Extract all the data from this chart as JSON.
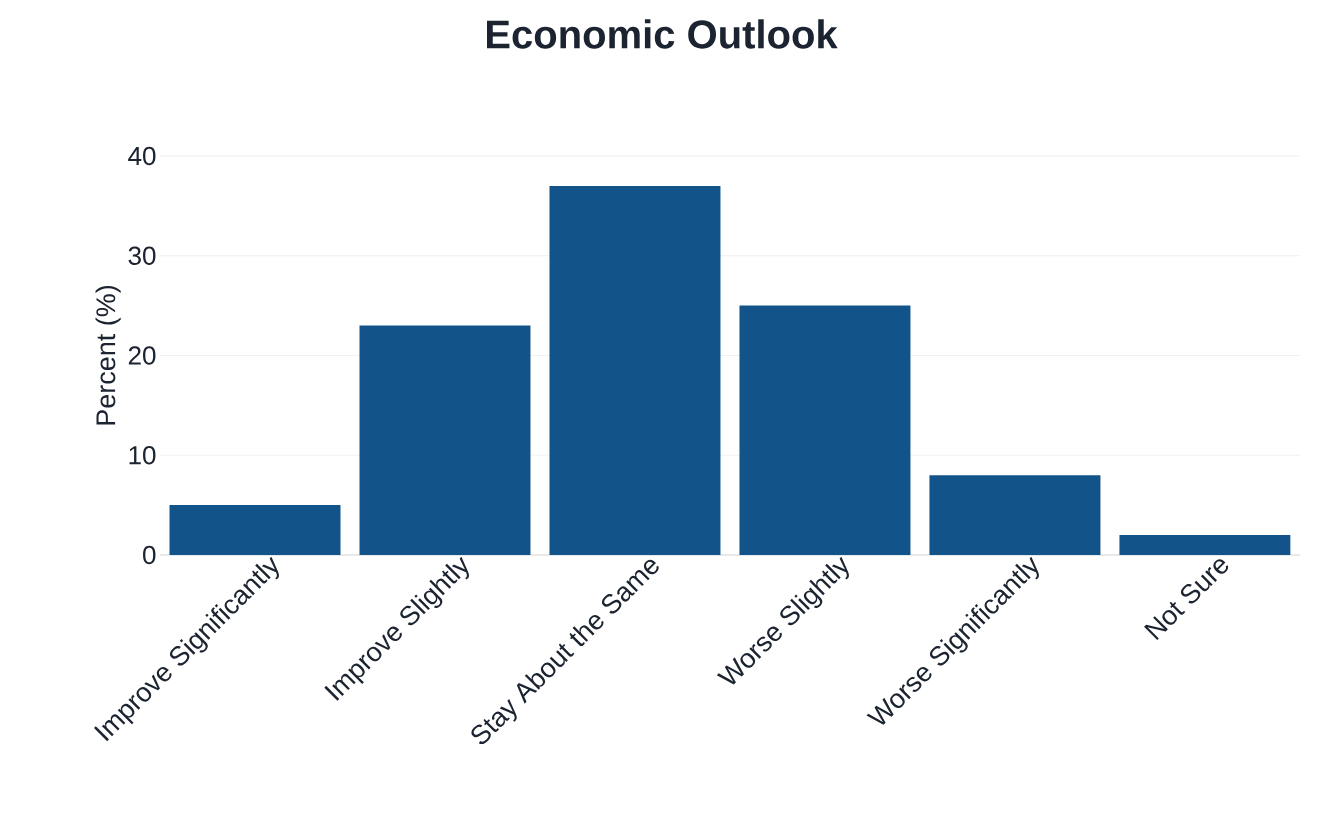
{
  "chart_data": {
    "type": "bar",
    "title": "Economic Outlook",
    "ylabel": "Percent (%)",
    "categories": [
      "Improve Significantly",
      "Improve Slightly",
      "Stay About the Same",
      "Worse Slightly",
      "Worse Significantly",
      "Not Sure"
    ],
    "values": [
      5,
      23,
      37,
      25,
      8,
      2
    ],
    "color": "#12548a",
    "ylim": [
      0,
      40
    ],
    "yticks": [
      0,
      10,
      20,
      30,
      40
    ],
    "grid": "y"
  }
}
